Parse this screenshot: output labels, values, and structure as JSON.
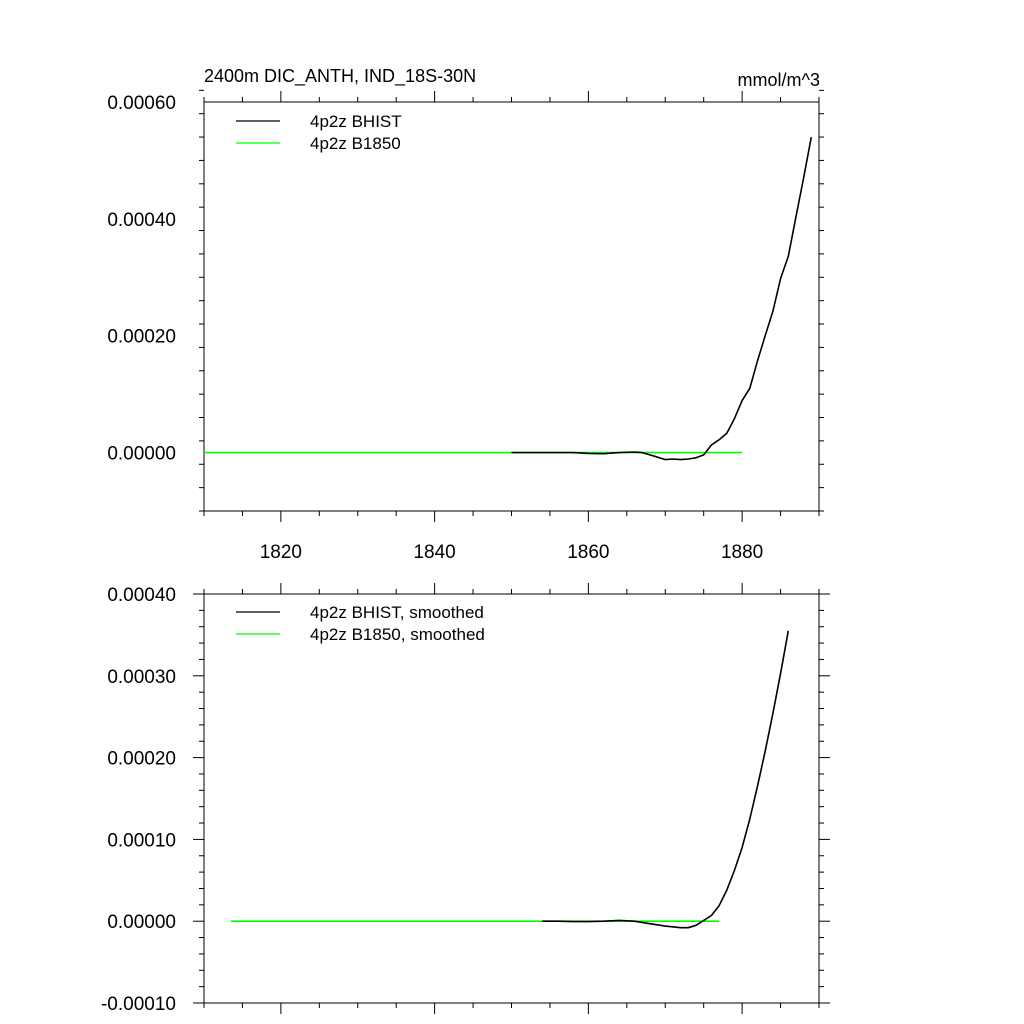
{
  "chart_data": [
    {
      "type": "line",
      "title": "2400m DIC_ANTH, IND_18S-30N",
      "units": "mmol/m^3",
      "xlim": [
        1810,
        1890
      ],
      "ylim": [
        -0.0001,
        0.0006
      ],
      "xticks": [
        {
          "value": 1820,
          "label": "1820"
        },
        {
          "value": 1840,
          "label": "1840"
        },
        {
          "value": 1860,
          "label": "1860"
        },
        {
          "value": 1880,
          "label": "1880"
        }
      ],
      "yticks": [
        {
          "value": 0.0,
          "label": "0.00000"
        },
        {
          "value": 0.0002,
          "label": "0.00020"
        },
        {
          "value": 0.0004,
          "label": "0.00040"
        },
        {
          "value": 0.0006,
          "label": "0.00060"
        }
      ],
      "legend_position": "top-left",
      "series": [
        {
          "name": "4p2z BHIST",
          "color": "#000000",
          "x": [
            1850,
            1852,
            1854,
            1856,
            1858,
            1860,
            1862,
            1864,
            1866,
            1867,
            1868,
            1869,
            1870,
            1871,
            1872,
            1873,
            1874,
            1875,
            1876,
            1877,
            1878,
            1879,
            1880,
            1881,
            1882,
            1883,
            1884,
            1885,
            1886,
            1887,
            1888,
            1889
          ],
          "y": [
            0.0,
            0.0,
            0.0,
            0.0,
            0.0,
            -1.5e-06,
            -2e-06,
            0.0,
            1e-06,
            0.0,
            -4e-06,
            -8e-06,
            -1.2e-05,
            -1.1e-05,
            -1.2e-05,
            -1.1e-05,
            -9e-06,
            -4e-06,
            1.3e-05,
            2.2e-05,
            3.3e-05,
            5.8e-05,
            8.9e-05,
            0.00011,
            0.000157,
            0.0002,
            0.000242,
            0.000298,
            0.000336,
            0.000403,
            0.00047,
            0.00054
          ]
        },
        {
          "name": "4p2z B1850",
          "color": "#00ff00",
          "x": [
            1810,
            1880
          ],
          "y": [
            0.0,
            0.0
          ]
        }
      ]
    },
    {
      "type": "line",
      "xlim": [
        1810,
        1890
      ],
      "ylim": [
        -0.0001,
        0.0004
      ],
      "xticks": [
        {
          "value": 1820,
          "label": ""
        },
        {
          "value": 1840,
          "label": ""
        },
        {
          "value": 1860,
          "label": ""
        },
        {
          "value": 1880,
          "label": ""
        }
      ],
      "yticks": [
        {
          "value": -0.0001,
          "label": "-0.00010"
        },
        {
          "value": 0.0,
          "label": "0.00000"
        },
        {
          "value": 0.0001,
          "label": "0.00010"
        },
        {
          "value": 0.0002,
          "label": "0.00020"
        },
        {
          "value": 0.0003,
          "label": "0.00030"
        },
        {
          "value": 0.0004,
          "label": "0.00040"
        }
      ],
      "legend_position": "top-left",
      "series": [
        {
          "name": "4p2z BHIST, smoothed",
          "color": "#000000",
          "x": [
            1854,
            1856,
            1858,
            1860,
            1862,
            1864,
            1866,
            1868,
            1870,
            1872,
            1873,
            1874,
            1875,
            1876,
            1877,
            1878,
            1879,
            1880,
            1881,
            1882,
            1883,
            1884,
            1885,
            1886
          ],
          "y": [
            0.0,
            0.0,
            -5e-07,
            -5e-07,
            0.0,
            1e-06,
            0.0,
            -3e-06,
            -6e-06,
            -8e-06,
            -8e-06,
            -5e-06,
            1e-06,
            7e-06,
            1.9e-05,
            3.8e-05,
            6.2e-05,
            9e-05,
            0.000125,
            0.000165,
            0.000208,
            0.000254,
            0.000303,
            0.000355
          ]
        },
        {
          "name": "4p2z B1850, smoothed",
          "color": "#00ff00",
          "x": [
            1813.5,
            1877
          ],
          "y": [
            0.0,
            0.0
          ]
        }
      ]
    }
  ]
}
